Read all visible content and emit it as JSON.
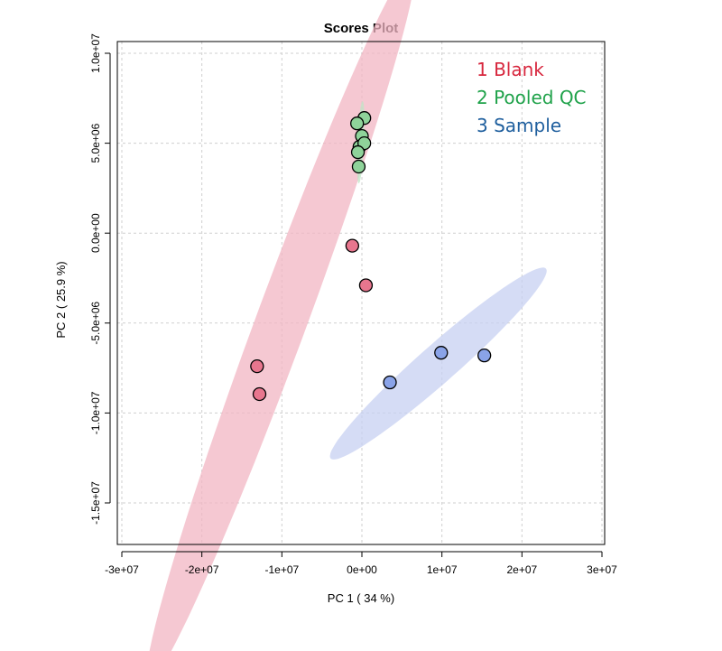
{
  "chart_data": {
    "type": "scatter",
    "title": "Scores Plot",
    "xlabel": "PC 1 ( 34 %)",
    "ylabel": "PC 2 ( 25.9 %)",
    "xlim": [
      -30000000,
      30000000
    ],
    "ylim": [
      -17000000,
      10000000
    ],
    "x_ticks": [
      -30000000,
      -20000000,
      -10000000,
      0,
      10000000,
      20000000,
      30000000
    ],
    "x_tick_labels": [
      "-3e+07",
      "-2e+07",
      "-1e+07",
      "0e+00",
      "1e+07",
      "2e+07",
      "3e+07"
    ],
    "y_ticks": [
      -15000000,
      -10000000,
      -5000000,
      0,
      5000000,
      10000000
    ],
    "y_tick_labels": [
      "-1.5e+07",
      "-1.0e+07",
      "-5.0e+06",
      "0.0e+00",
      "5.0e+06",
      "1.0e+07"
    ],
    "grid": true,
    "legend_position": "top-right",
    "series": [
      {
        "name": "1 Blank",
        "color": "#d7263d",
        "point_fill": "#e8768e",
        "ellipse_fill": "#f2b6c3",
        "points": [
          [
            -1200000,
            -700000
          ],
          [
            500000,
            -2900000
          ],
          [
            -13100000,
            -7400000
          ],
          [
            -12800000,
            -8950000
          ]
        ],
        "ellipse": {
          "center": [
            -10100000,
            -4950000
          ],
          "semi_major": 26000000,
          "semi_minor": 2600000,
          "angle_deg": 50
        }
      },
      {
        "name": "2 Pooled QC",
        "color": "#1fa24a",
        "point_fill": "#8fd39a",
        "ellipse_fill": "#bfe6c5",
        "points": [
          [
            300000,
            6400000
          ],
          [
            -600000,
            6100000
          ],
          [
            0,
            5400000
          ],
          [
            -300000,
            4800000
          ],
          [
            300000,
            5000000
          ],
          [
            -500000,
            4500000
          ],
          [
            -400000,
            3700000
          ]
        ],
        "ellipse": {
          "center": [
            -150000,
            5050000
          ],
          "semi_major": 2300000,
          "semi_minor": 400000,
          "angle_deg": 84
        }
      },
      {
        "name": "3 Sample",
        "color": "#1f5f9e",
        "point_fill": "#8aa3e8",
        "ellipse_fill": "#c7d0f1",
        "points": [
          [
            3500000,
            -8300000
          ],
          [
            9900000,
            -6650000
          ],
          [
            15300000,
            -6800000
          ]
        ],
        "ellipse": {
          "center": [
            9550000,
            -7250000
          ],
          "semi_major": 14500000,
          "semi_minor": 1300000,
          "angle_deg": 21
        }
      }
    ]
  }
}
